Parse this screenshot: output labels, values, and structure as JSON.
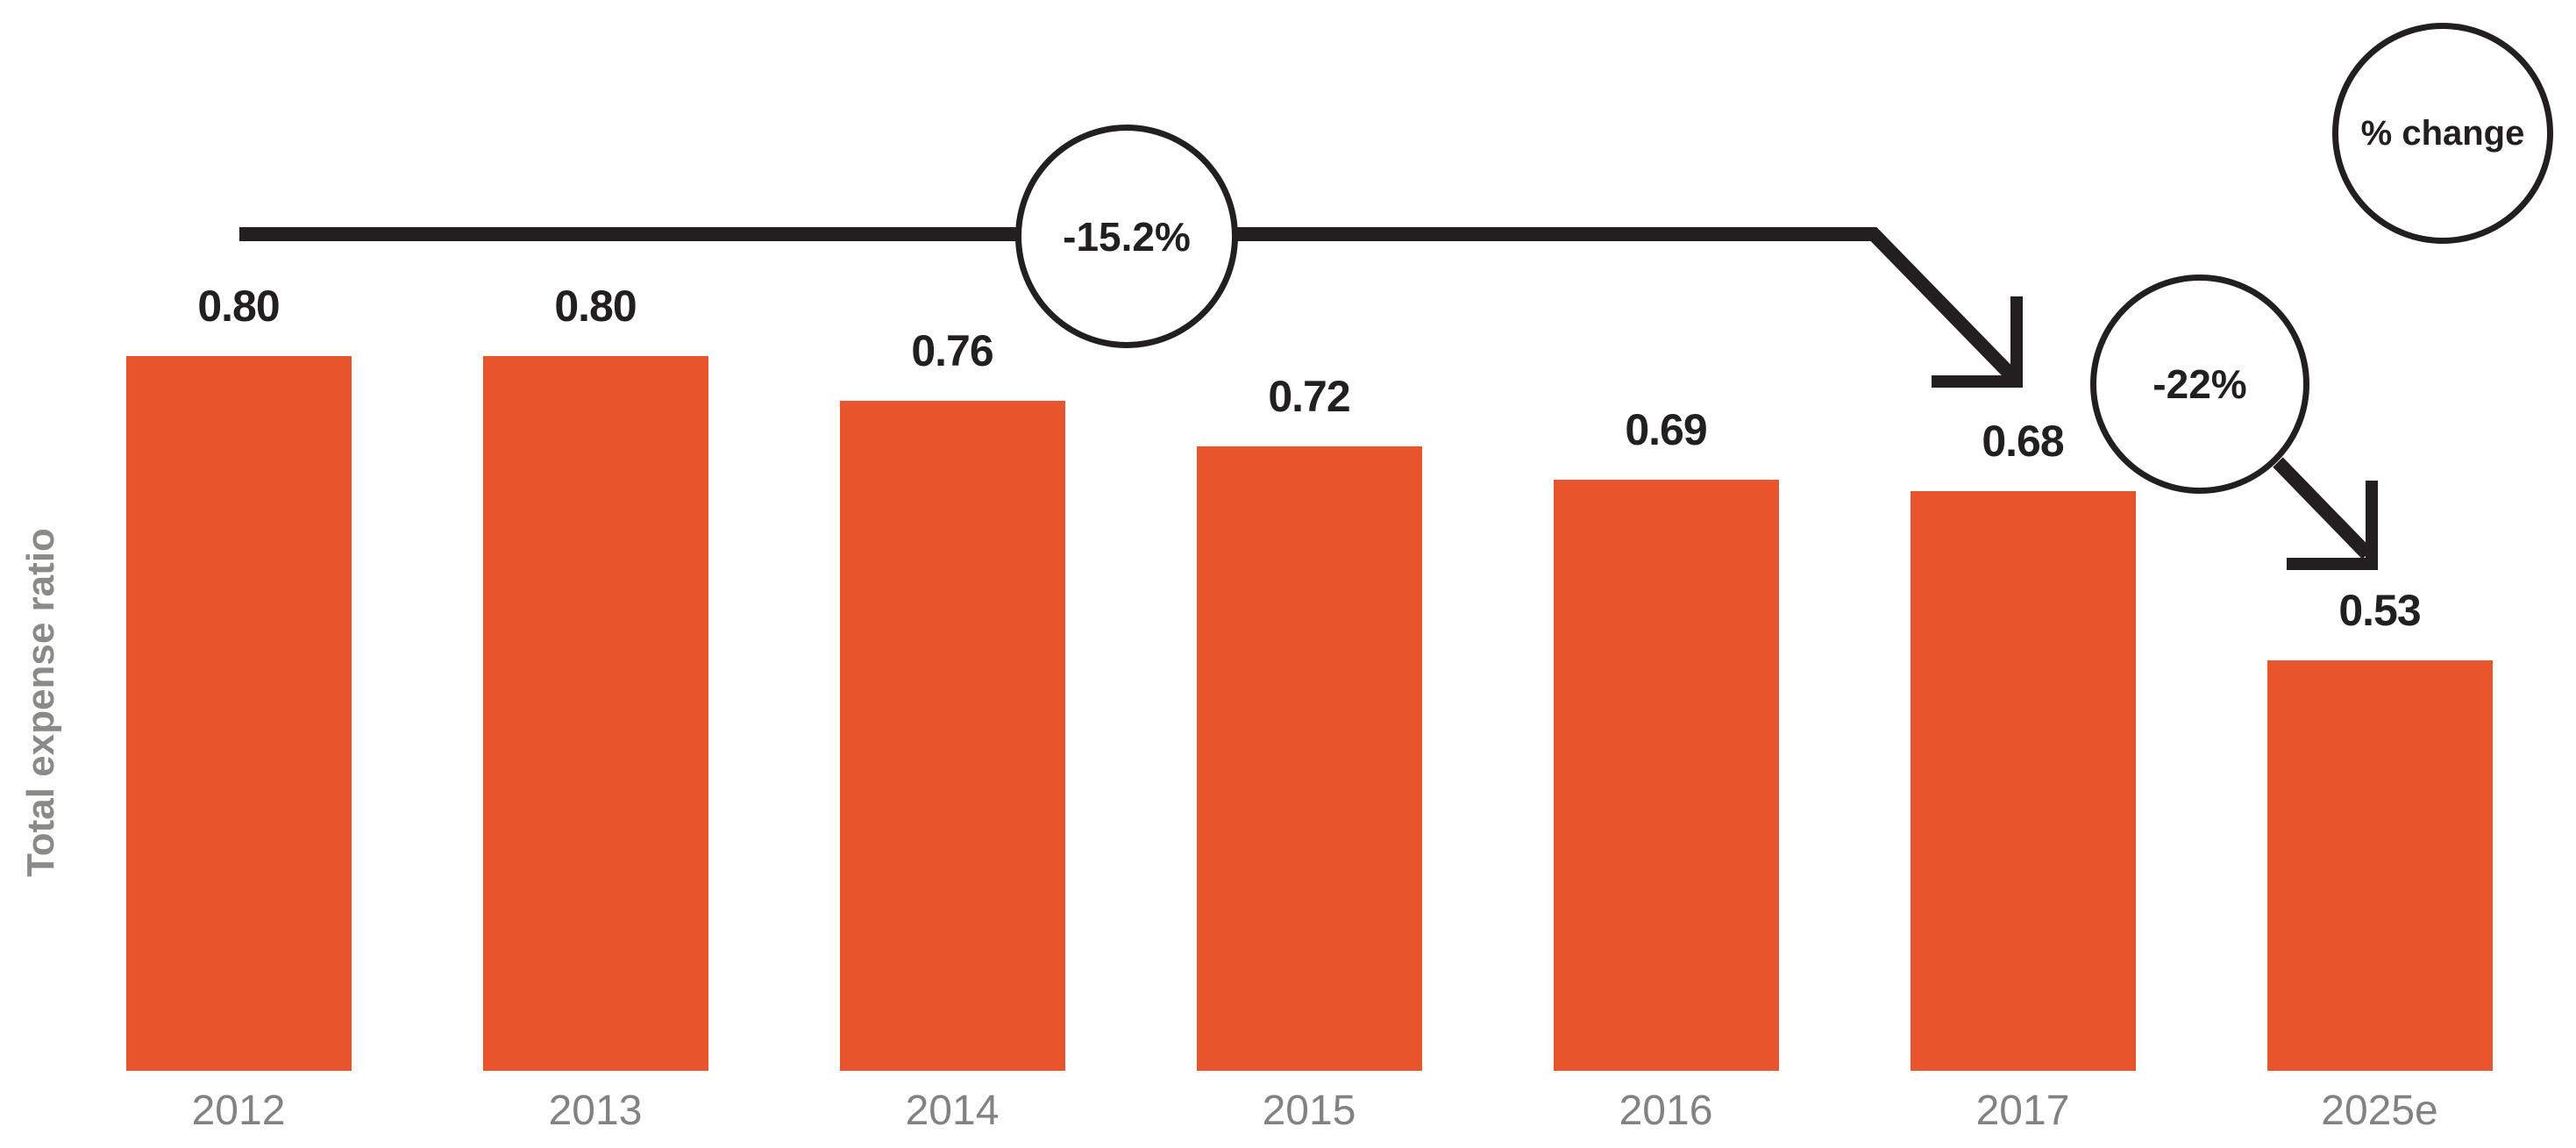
{
  "chart_data": {
    "type": "bar",
    "title": "",
    "xlabel": "",
    "ylabel": "Total expense ratio",
    "categories": [
      "2012",
      "2013",
      "2014",
      "2015",
      "2016",
      "2017",
      "2025e"
    ],
    "values": [
      0.8,
      0.8,
      0.76,
      0.72,
      0.69,
      0.68,
      0.53
    ],
    "data_labels": [
      "0.80",
      "0.80",
      "0.76",
      "0.72",
      "0.69",
      "0.68",
      "0.53"
    ],
    "legend": "% change",
    "legend_position": "top-right-circle",
    "annotations": [
      {
        "text": "-15.2%",
        "shape": "circle",
        "from": "2012",
        "to": "2017"
      },
      {
        "text": "-22%",
        "shape": "circle",
        "from": "2017",
        "to": "2025e"
      }
    ],
    "grid": false,
    "ylim_implied": [
      0.166,
      0.85
    ],
    "bar_color": "#E8542B",
    "stroke_color": "#231F20",
    "category_text_color": "#828282",
    "ylabel_text_color": "#8A8A87"
  }
}
